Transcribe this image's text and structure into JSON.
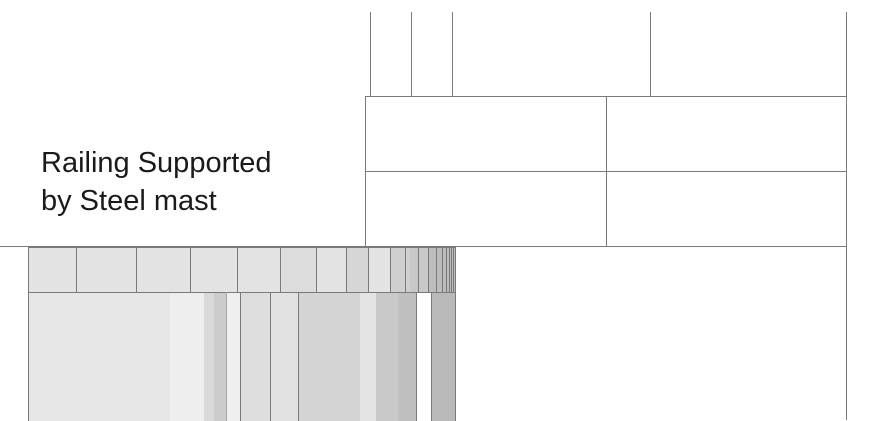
{
  "annotation": {
    "line1": "Railing Supported",
    "line2": "by Steel mast"
  },
  "colors": {
    "line": "#7a7a7a",
    "light_line": "#a8a8a8",
    "fill_base": "#e4e4e4"
  }
}
